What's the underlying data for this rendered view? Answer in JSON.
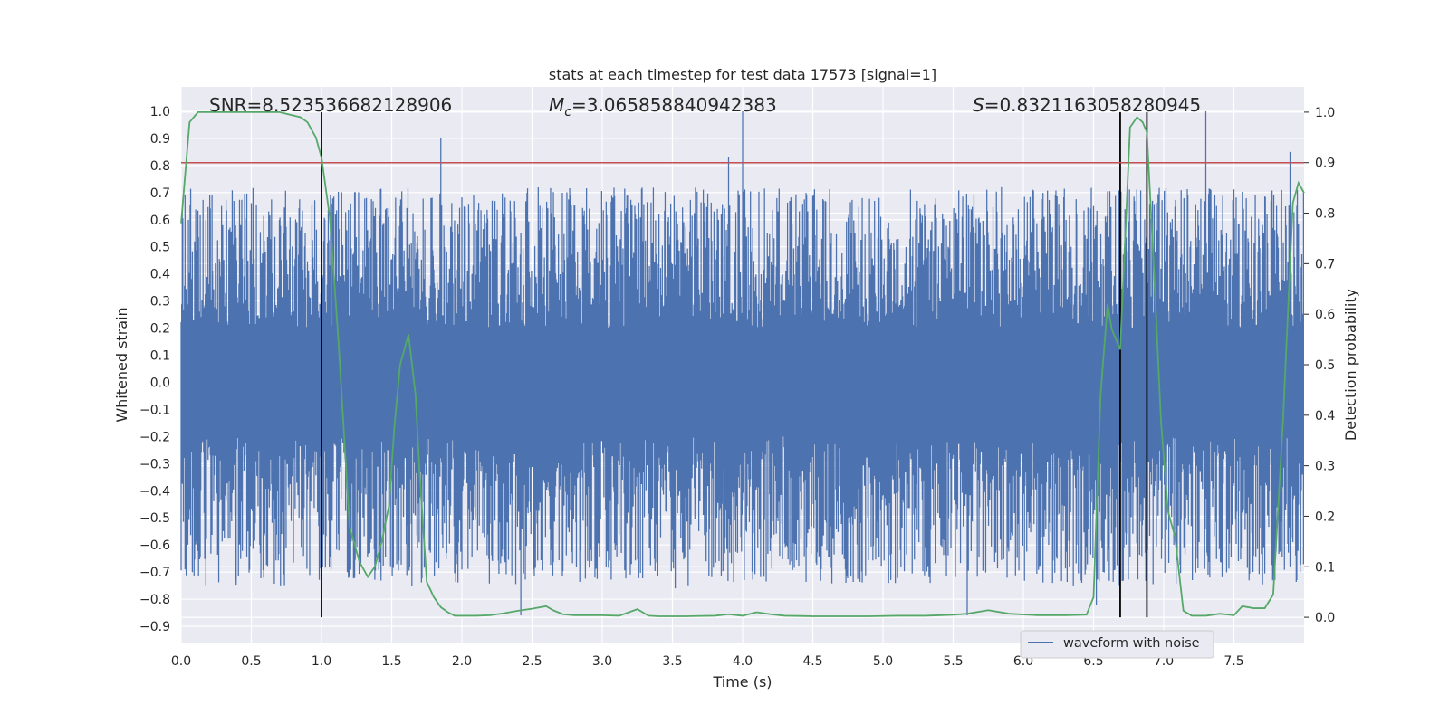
{
  "chart_data": {
    "type": "line",
    "title": "stats at each timestep for test data 17573 [signal=1]",
    "xlabel": "Time (s)",
    "ylabel_left": "Whitened strain",
    "ylabel_right": "Detection probability",
    "xlim": [
      0.0,
      8.0
    ],
    "ylim_left": [
      -0.96,
      1.09
    ],
    "ylim_right": [
      -0.05,
      1.05
    ],
    "x_ticks": [
      "0.0",
      "0.5",
      "1.0",
      "1.5",
      "2.0",
      "2.5",
      "3.0",
      "3.5",
      "4.0",
      "4.5",
      "5.0",
      "5.5",
      "6.0",
      "6.5",
      "7.0",
      "7.5"
    ],
    "y_ticks_left": [
      "-0.9",
      "-0.8",
      "-0.7",
      "-0.6",
      "-0.5",
      "-0.4",
      "-0.3",
      "-0.2",
      "-0.1",
      "0.0",
      "0.1",
      "0.2",
      "0.3",
      "0.4",
      "0.5",
      "0.6",
      "0.7",
      "0.8",
      "0.9",
      "1.0"
    ],
    "y_ticks_right": [
      "0.0",
      "0.1",
      "0.2",
      "0.3",
      "0.4",
      "0.5",
      "0.6",
      "0.7",
      "0.8",
      "0.9",
      "1.0"
    ],
    "grid": true,
    "annotations": {
      "snr": "SNR=8.523536682128906",
      "mc_symbol": "M",
      "mc_sub": "c",
      "mc_value": "=3.065858840942383",
      "s_symbol": "S",
      "s_value": "=0.8321163058280945"
    },
    "legend": {
      "label": "waveform with noise",
      "position": "lower-right"
    },
    "threshold": {
      "value": 0.9,
      "axis": "right",
      "color": "#c44e52"
    },
    "vertical_markers": [
      1.0,
      6.69,
      6.88
    ],
    "series": [
      {
        "name": "waveform with noise",
        "axis": "left",
        "color": "#4c72b0",
        "description_peaks": {
          "x": [
            1.0,
            1.32,
            1.56,
            1.85,
            2.42,
            3.52,
            3.9,
            4.0,
            5.6,
            6.52,
            7.3,
            7.9
          ],
          "y": [
            0.74,
            0.68,
            0.65,
            0.9,
            -0.86,
            -0.76,
            0.83,
            1.0,
            -0.86,
            -0.82,
            1.0,
            0.85
          ]
        }
      },
      {
        "name": "",
        "axis": "right",
        "color": "#55a868",
        "x": [
          0.0,
          0.06,
          0.12,
          0.2,
          0.3,
          0.5,
          0.7,
          0.85,
          0.9,
          0.96,
          1.0,
          1.06,
          1.12,
          1.2,
          1.27,
          1.33,
          1.38,
          1.43,
          1.48,
          1.52,
          1.56,
          1.62,
          1.67,
          1.7,
          1.75,
          1.8,
          1.85,
          1.9,
          1.95,
          2.0,
          2.1,
          2.2,
          2.3,
          2.4,
          2.5,
          2.6,
          2.65,
          2.72,
          2.8,
          3.0,
          3.12,
          3.25,
          3.33,
          3.4,
          3.6,
          3.8,
          3.9,
          4.0,
          4.1,
          4.2,
          4.3,
          4.5,
          4.7,
          4.9,
          5.1,
          5.3,
          5.5,
          5.6,
          5.75,
          5.9,
          6.1,
          6.3,
          6.45,
          6.5,
          6.55,
          6.6,
          6.63,
          6.69,
          6.73,
          6.76,
          6.81,
          6.85,
          6.88,
          6.93,
          6.98,
          7.03,
          7.08,
          7.14,
          7.2,
          7.3,
          7.4,
          7.5,
          7.56,
          7.64,
          7.72,
          7.78,
          7.85,
          7.92,
          7.96,
          8.0
        ],
        "values": [
          0.78,
          0.98,
          1.0,
          1.0,
          1.0,
          1.0,
          1.0,
          0.99,
          0.98,
          0.95,
          0.91,
          0.79,
          0.55,
          0.18,
          0.11,
          0.08,
          0.1,
          0.15,
          0.22,
          0.38,
          0.5,
          0.56,
          0.44,
          0.28,
          0.07,
          0.04,
          0.02,
          0.01,
          0.003,
          0.003,
          0.003,
          0.004,
          0.008,
          0.013,
          0.017,
          0.022,
          0.014,
          0.006,
          0.004,
          0.004,
          0.003,
          0.016,
          0.003,
          0.002,
          0.002,
          0.003,
          0.006,
          0.003,
          0.01,
          0.006,
          0.003,
          0.002,
          0.002,
          0.002,
          0.003,
          0.003,
          0.005,
          0.007,
          0.014,
          0.007,
          0.004,
          0.004,
          0.005,
          0.04,
          0.44,
          0.62,
          0.57,
          0.53,
          0.78,
          0.97,
          0.99,
          0.98,
          0.96,
          0.69,
          0.39,
          0.21,
          0.16,
          0.013,
          0.003,
          0.003,
          0.007,
          0.004,
          0.022,
          0.018,
          0.018,
          0.045,
          0.39,
          0.82,
          0.86,
          0.84
        ]
      }
    ]
  },
  "colors": {
    "plot_bg": "#eaeaf2",
    "grid": "#ffffff",
    "waveform": "#4c72b0",
    "probability": "#55a868",
    "threshold": "#c44e52",
    "marker": "#000000"
  }
}
